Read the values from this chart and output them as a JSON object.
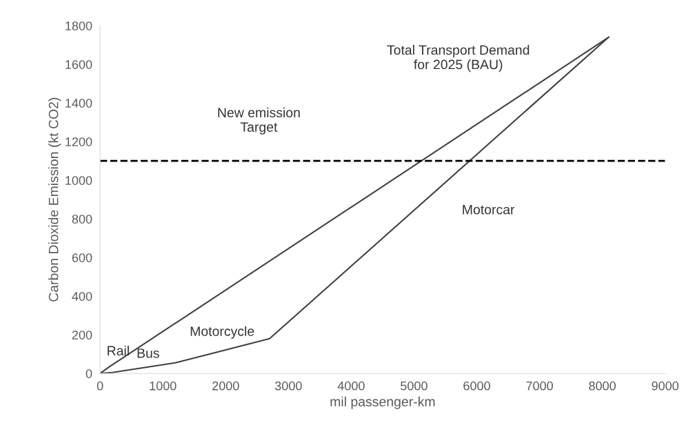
{
  "chart_data": {
    "type": "line",
    "xlabel": "mil passenger-km",
    "ylabel": "Carbon Dioxide Emission (kt CO2)",
    "series": [
      {
        "color": "#404040",
        "x": [
          0,
          150,
          8100
        ],
        "values": [
          0,
          35,
          1740
        ]
      },
      {
        "color": "#404040",
        "x": [
          0,
          200,
          1200,
          2700,
          8100
        ],
        "values": [
          0,
          5,
          55,
          180,
          1740
        ]
      }
    ],
    "xlim": [
      0,
      9000
    ],
    "xticks": [
      0,
      1000,
      2000,
      3000,
      4000,
      5000,
      6000,
      7000,
      8000,
      9000
    ],
    "ylim": [
      0,
      1800
    ],
    "yticks": [
      0,
      200,
      400,
      600,
      800,
      1000,
      1200,
      1400,
      1600,
      1800
    ],
    "ref_lines": [
      {
        "axis": "y",
        "value": 1100,
        "color": "#000000",
        "line_style": "dashed"
      }
    ],
    "annotations": [
      "Total Transport Demand\nfor 2025 (BAU)",
      "New emission\nTarget",
      "Motorcar",
      "Motorcycle",
      "Rail",
      "Bus"
    ],
    "grid": false,
    "legend": false,
    "marker": "none",
    "line_style": "solid"
  }
}
